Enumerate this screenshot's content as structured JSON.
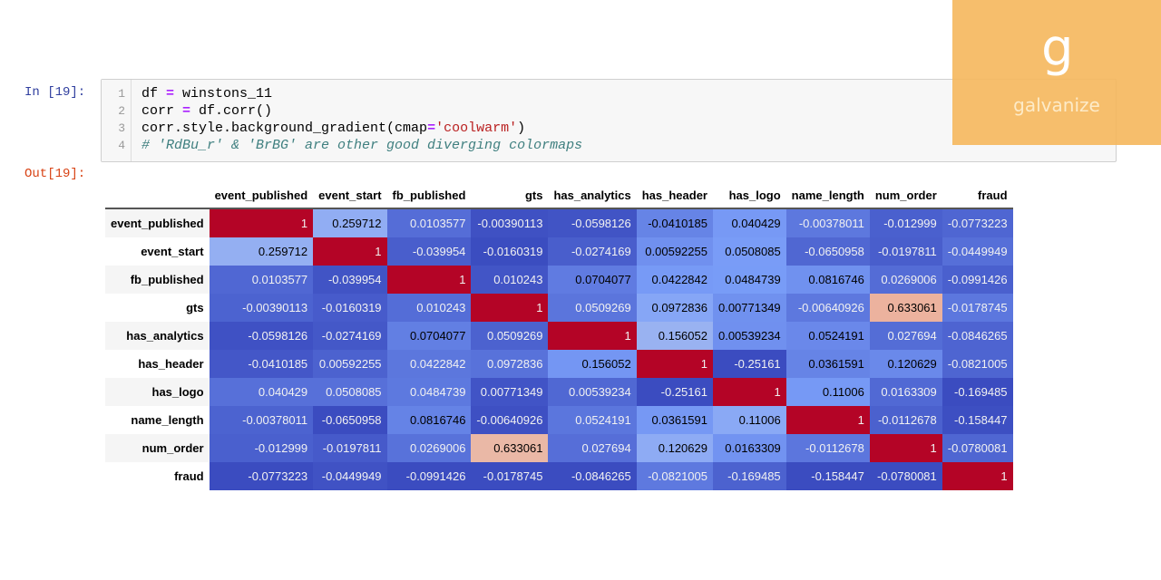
{
  "notebook": {
    "in_prompt": "In [19]:",
    "out_prompt": "Out[19]:",
    "code_lines": [
      {
        "n": "1",
        "parts": [
          [
            "",
            "df "
          ],
          [
            "kw",
            "="
          ],
          [
            "",
            " winstons_11"
          ]
        ]
      },
      {
        "n": "2",
        "parts": [
          [
            "",
            "corr "
          ],
          [
            "kw",
            "="
          ],
          [
            "",
            " df.corr()"
          ]
        ]
      },
      {
        "n": "3",
        "parts": [
          [
            "",
            "corr.style.background_gradient(cmap"
          ],
          [
            "kw",
            "="
          ],
          [
            "str",
            "'coolwarm'"
          ],
          [
            "",
            ")"
          ]
        ]
      },
      {
        "n": "4",
        "parts": [
          [
            "cm",
            "# 'RdBu_r' & 'BrBG' are other good diverging colormaps"
          ]
        ]
      }
    ]
  },
  "logo": {
    "text": "galvanize",
    "glyph": "g",
    "color": "#f5b75c"
  },
  "colormap": {
    "name": "coolwarm",
    "stops": [
      "#3b4cc0",
      "#7b9ff9",
      "#dddddd",
      "#f49a7b",
      "#b40426"
    ]
  },
  "table": {
    "columns": [
      "event_published",
      "event_start",
      "fb_published",
      "gts",
      "has_analytics",
      "has_header",
      "has_logo",
      "name_length",
      "num_order",
      "fraud"
    ],
    "rows": [
      {
        "name": "event_published",
        "values": [
          "1",
          "0.259712",
          "0.0103577",
          "-0.00390113",
          "-0.0598126",
          "-0.0410185",
          "0.040429",
          "-0.00378011",
          "-0.012999",
          "-0.0773223"
        ]
      },
      {
        "name": "event_start",
        "values": [
          "0.259712",
          "1",
          "-0.039954",
          "-0.0160319",
          "-0.0274169",
          "0.00592255",
          "0.0508085",
          "-0.0650958",
          "-0.0197811",
          "-0.0449949"
        ]
      },
      {
        "name": "fb_published",
        "values": [
          "0.0103577",
          "-0.039954",
          "1",
          "0.010243",
          "0.0704077",
          "0.0422842",
          "0.0484739",
          "0.0816746",
          "0.0269006",
          "-0.0991426"
        ]
      },
      {
        "name": "gts",
        "values": [
          "-0.00390113",
          "-0.0160319",
          "0.010243",
          "1",
          "0.0509269",
          "0.0972836",
          "0.00771349",
          "-0.00640926",
          "0.633061",
          "-0.0178745"
        ]
      },
      {
        "name": "has_analytics",
        "values": [
          "-0.0598126",
          "-0.0274169",
          "0.0704077",
          "0.0509269",
          "1",
          "0.156052",
          "0.00539234",
          "0.0524191",
          "0.027694",
          "-0.0846265"
        ]
      },
      {
        "name": "has_header",
        "values": [
          "-0.0410185",
          "0.00592255",
          "0.0422842",
          "0.0972836",
          "0.156052",
          "1",
          "-0.25161",
          "0.0361591",
          "0.120629",
          "-0.0821005"
        ]
      },
      {
        "name": "has_logo",
        "values": [
          "0.040429",
          "0.0508085",
          "0.0484739",
          "0.00771349",
          "0.00539234",
          "-0.25161",
          "1",
          "0.11006",
          "0.0163309",
          "-0.169485"
        ]
      },
      {
        "name": "name_length",
        "values": [
          "-0.00378011",
          "-0.0650958",
          "0.0816746",
          "-0.00640926",
          "0.0524191",
          "0.0361591",
          "0.11006",
          "1",
          "-0.0112678",
          "-0.158447"
        ]
      },
      {
        "name": "num_order",
        "values": [
          "-0.012999",
          "-0.0197811",
          "0.0269006",
          "0.633061",
          "0.027694",
          "0.120629",
          "0.0163309",
          "-0.0112678",
          "1",
          "-0.0780081"
        ]
      },
      {
        "name": "fraud",
        "values": [
          "-0.0773223",
          "-0.0449949",
          "-0.0991426",
          "-0.0178745",
          "-0.0846265",
          "-0.0821005",
          "-0.169485",
          "-0.158447",
          "-0.0780081",
          "1"
        ]
      }
    ]
  }
}
